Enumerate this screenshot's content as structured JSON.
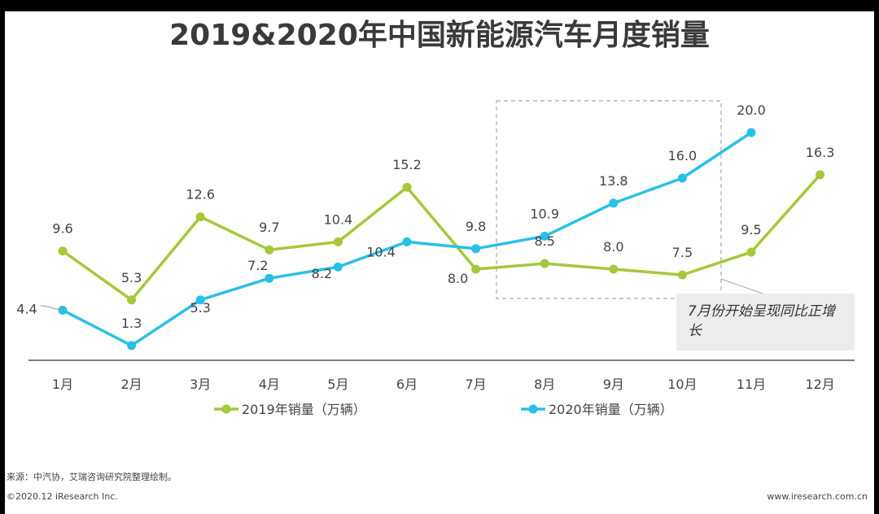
{
  "title": "2019&2020年中国新能源汽车月度销量",
  "chart_data": {
    "type": "line",
    "categories": [
      "1月",
      "2月",
      "3月",
      "4月",
      "5月",
      "6月",
      "7月",
      "8月",
      "9月",
      "10月",
      "11月",
      "12月"
    ],
    "series": [
      {
        "name": "2019年销量（万辆）",
        "color": "#a6c83b",
        "values": [
          9.6,
          5.3,
          12.6,
          9.7,
          10.4,
          15.2,
          8.0,
          8.5,
          8.0,
          7.5,
          9.5,
          16.3
        ],
        "labels": [
          "9.6",
          "5.3",
          "12.6",
          "9.7",
          "10.4",
          "15.2",
          "8.0",
          "8.5",
          "8.0",
          "7.5",
          "9.5",
          "16.3"
        ]
      },
      {
        "name": "2020年销量（万辆）",
        "color": "#29c0e8",
        "values": [
          4.4,
          1.3,
          5.3,
          7.2,
          8.2,
          10.4,
          9.8,
          10.9,
          13.8,
          16.0,
          20.0,
          null
        ],
        "labels": [
          "4.4",
          "1.3",
          "5.3",
          "7.2",
          "8.2",
          "10.4",
          "9.8",
          "10.9",
          "13.8",
          "16.0",
          "20.0",
          null
        ]
      }
    ],
    "legend_position": "bottom",
    "grid": false
  },
  "annotation": {
    "text": "7月份开始呈现同比正增长"
  },
  "source": "来源：中汽协，艾瑞咨询研究院整理绘制。",
  "footer": {
    "copyright": "©2020.12 iResearch Inc.",
    "website": "www.iresearch.com.cn"
  }
}
